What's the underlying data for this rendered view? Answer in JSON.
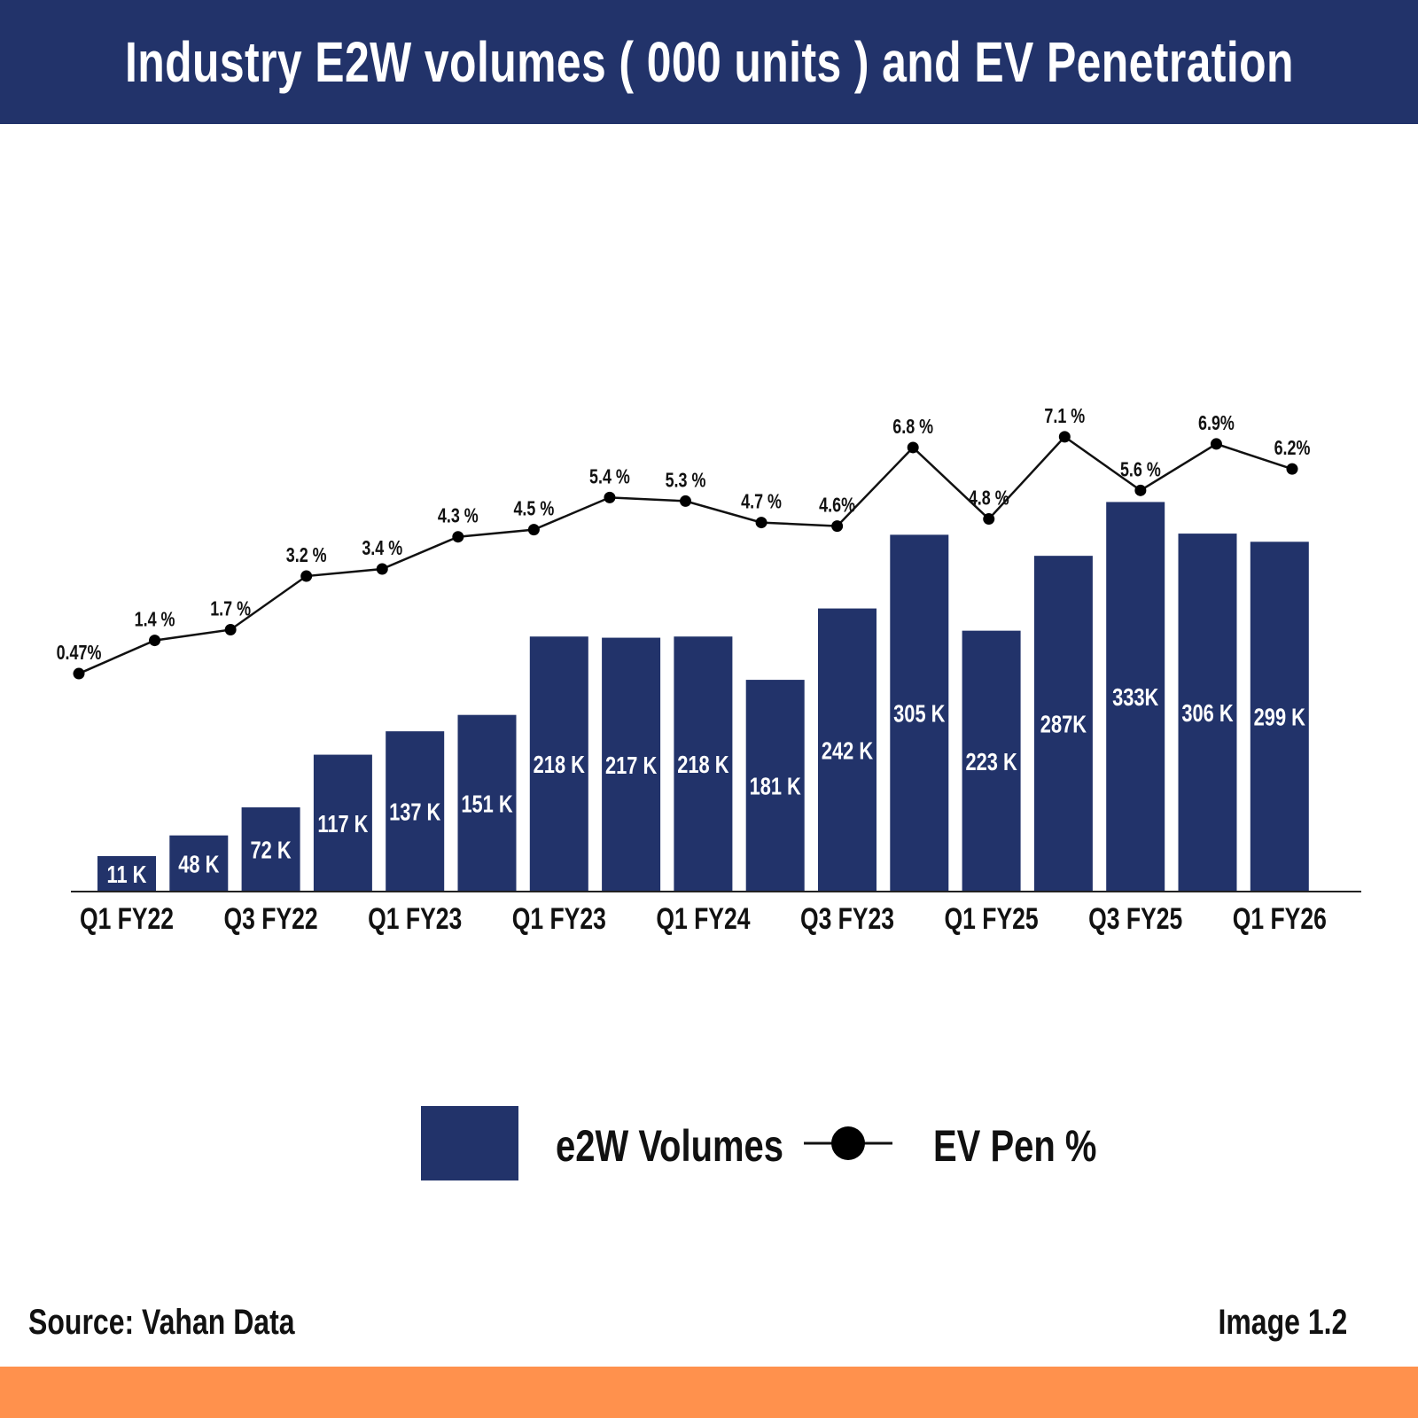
{
  "header": {
    "title": "Industry E2W volumes ( 000 units ) and EV Penetration"
  },
  "footer": {
    "source": "Source: Vahan Data",
    "image_label": "Image 1.2"
  },
  "colors": {
    "header": "#22336a",
    "bar": "#22336a",
    "line": "#111111",
    "accent_bottom": "#ff914d"
  },
  "chart_data": {
    "type": "bar+line",
    "title": "Industry E2W volumes ( 000 units ) and EV Penetration",
    "x_tick_labels": [
      "Q1 FY22",
      "Q3 FY22",
      "Q1 FY23",
      "Q1 FY23",
      "Q1 FY24",
      "Q3 FY23",
      "Q1 FY25",
      "Q3 FY25",
      "Q1 FY26"
    ],
    "x_tick_every": 2,
    "grid": false,
    "legend_placement": "bottom-center",
    "series": [
      {
        "name": "e2W Volumes",
        "type": "bar",
        "unit": "K",
        "values": [
          11,
          48,
          72,
          117,
          137,
          151,
          218,
          217,
          218,
          181,
          242,
          305,
          223,
          287,
          333,
          306,
          299
        ],
        "labels": [
          "11 K",
          "48 K",
          "72 K",
          "117 K",
          "137 K",
          "151 K",
          "218 K",
          "217 K",
          "218 K",
          "181 K",
          "242 K",
          "305 K",
          "223 K",
          "287K",
          "333K",
          "306 K",
          "299 K"
        ]
      },
      {
        "name": "EV Pen %",
        "type": "line",
        "unit": "%",
        "values": [
          0.47,
          1.4,
          1.7,
          3.2,
          3.4,
          4.3,
          4.5,
          5.4,
          5.3,
          4.7,
          4.6,
          6.8,
          4.8,
          7.1,
          5.6,
          6.9,
          6.2
        ],
        "labels": [
          "0.47%",
          "1.4 %",
          "1.7 %",
          "3.2 %",
          "3.4 %",
          "4.3 %",
          "4.5 %",
          "5.4 %",
          "5.3 %",
          "4.7 %",
          "4.6%",
          "6.8 %",
          "4.8 %",
          "7.1 %",
          "5.6 %",
          "6.9%",
          "6.2%"
        ]
      }
    ]
  }
}
